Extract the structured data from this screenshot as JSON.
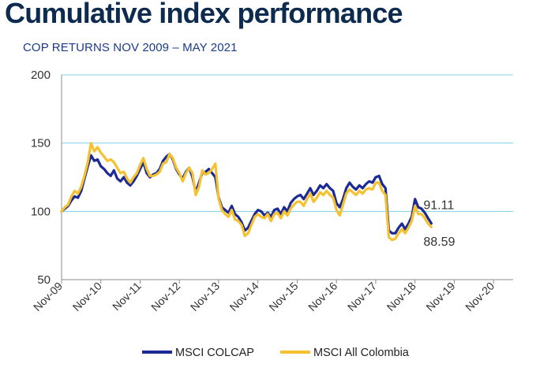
{
  "chart_data": {
    "type": "line",
    "title": "Cumulative index performance",
    "subtitle": "COP RETURNS NOV 2009  – MAY 2021",
    "xlabel": "",
    "ylabel": "",
    "ylim": [
      50,
      200
    ],
    "yticks": [
      50,
      100,
      150,
      200
    ],
    "xlim": [
      0,
      138
    ],
    "xticks": [
      {
        "label": "Nov-09",
        "x": 0
      },
      {
        "label": "Nov-10",
        "x": 12
      },
      {
        "label": "Nov-11",
        "x": 24
      },
      {
        "label": "Nov-12",
        "x": 36
      },
      {
        "label": "Nov-13",
        "x": 48
      },
      {
        "label": "Nov-14",
        "x": 60
      },
      {
        "label": "Nov-15",
        "x": 72
      },
      {
        "label": "Nov-16",
        "x": 84
      },
      {
        "label": "Nov-17",
        "x": 96
      },
      {
        "label": "Nov-18",
        "x": 108
      },
      {
        "label": "Nov-19",
        "x": 120
      },
      {
        "label": "Nov-20",
        "x": 132
      }
    ],
    "grid": "horizontal",
    "legend_position": "bottom",
    "series": [
      {
        "name": "MSCI COLCAP",
        "color": "#1b2a94",
        "end_label": "91.11",
        "points": [
          [
            0,
            100
          ],
          [
            1,
            102
          ],
          [
            2,
            104
          ],
          [
            3,
            108
          ],
          [
            4,
            111
          ],
          [
            5,
            110
          ],
          [
            6,
            115
          ],
          [
            7,
            124
          ],
          [
            8,
            133
          ],
          [
            9,
            141
          ],
          [
            10,
            137
          ],
          [
            11,
            138
          ],
          [
            12,
            133
          ],
          [
            13,
            131
          ],
          [
            14,
            128
          ],
          [
            15,
            126
          ],
          [
            16,
            130
          ],
          [
            17,
            124
          ],
          [
            18,
            122
          ],
          [
            19,
            125
          ],
          [
            20,
            121
          ],
          [
            21,
            119
          ],
          [
            22,
            122
          ],
          [
            23,
            126
          ],
          [
            24,
            131
          ],
          [
            25,
            136
          ],
          [
            26,
            128
          ],
          [
            27,
            125
          ],
          [
            28,
            127
          ],
          [
            29,
            128
          ],
          [
            30,
            131
          ],
          [
            31,
            137
          ],
          [
            32,
            140
          ],
          [
            33,
            142
          ],
          [
            34,
            138
          ],
          [
            35,
            131
          ],
          [
            36,
            127
          ],
          [
            37,
            124
          ],
          [
            38,
            129
          ],
          [
            39,
            132
          ],
          [
            40,
            125
          ],
          [
            41,
            114
          ],
          [
            42,
            121
          ],
          [
            43,
            128
          ],
          [
            44,
            129
          ],
          [
            45,
            131
          ],
          [
            46,
            128
          ],
          [
            47,
            125
          ],
          [
            48,
            110
          ],
          [
            49,
            103
          ],
          [
            50,
            101
          ],
          [
            51,
            99
          ],
          [
            52,
            104
          ],
          [
            53,
            98
          ],
          [
            54,
            96
          ],
          [
            55,
            92
          ],
          [
            56,
            86
          ],
          [
            57,
            88
          ],
          [
            58,
            93
          ],
          [
            59,
            98
          ],
          [
            60,
            101
          ],
          [
            61,
            100
          ],
          [
            62,
            97
          ],
          [
            63,
            99
          ],
          [
            64,
            96
          ],
          [
            65,
            101
          ],
          [
            66,
            102
          ],
          [
            67,
            98
          ],
          [
            68,
            103
          ],
          [
            69,
            100
          ],
          [
            70,
            106
          ],
          [
            71,
            109
          ],
          [
            72,
            111
          ],
          [
            73,
            112
          ],
          [
            74,
            109
          ],
          [
            75,
            113
          ],
          [
            76,
            117
          ],
          [
            77,
            112
          ],
          [
            78,
            115
          ],
          [
            79,
            119
          ],
          [
            80,
            117
          ],
          [
            81,
            120
          ],
          [
            82,
            117
          ],
          [
            83,
            115
          ],
          [
            84,
            106
          ],
          [
            85,
            103
          ],
          [
            86,
            109
          ],
          [
            87,
            117
          ],
          [
            88,
            121
          ],
          [
            89,
            118
          ],
          [
            90,
            116
          ],
          [
            91,
            119
          ],
          [
            92,
            117
          ],
          [
            93,
            120
          ],
          [
            94,
            122
          ],
          [
            95,
            121
          ],
          [
            96,
            125
          ],
          [
            97,
            126
          ],
          [
            98,
            120
          ],
          [
            99,
            117
          ],
          [
            100,
            86
          ],
          [
            101,
            84
          ],
          [
            102,
            84
          ],
          [
            103,
            88
          ],
          [
            104,
            91
          ],
          [
            105,
            87
          ],
          [
            106,
            91
          ],
          [
            107,
            96
          ],
          [
            108,
            109
          ],
          [
            109,
            103
          ],
          [
            110,
            102
          ],
          [
            111,
            99
          ],
          [
            112,
            95
          ],
          [
            113,
            91.11
          ]
        ]
      },
      {
        "name": "MSCI All Colombia",
        "color": "#f5c12e",
        "end_label": "88.59",
        "points": [
          [
            0,
            100
          ],
          [
            1,
            103
          ],
          [
            2,
            105
          ],
          [
            3,
            111
          ],
          [
            4,
            115
          ],
          [
            5,
            113
          ],
          [
            6,
            118
          ],
          [
            7,
            126
          ],
          [
            8,
            136
          ],
          [
            9,
            150
          ],
          [
            10,
            144
          ],
          [
            11,
            147
          ],
          [
            12,
            143
          ],
          [
            13,
            140
          ],
          [
            14,
            137
          ],
          [
            15,
            138
          ],
          [
            16,
            136
          ],
          [
            17,
            132
          ],
          [
            18,
            128
          ],
          [
            19,
            129
          ],
          [
            20,
            124
          ],
          [
            21,
            121
          ],
          [
            22,
            125
          ],
          [
            23,
            128
          ],
          [
            24,
            134
          ],
          [
            25,
            139
          ],
          [
            26,
            131
          ],
          [
            27,
            126
          ],
          [
            28,
            126
          ],
          [
            29,
            127
          ],
          [
            30,
            129
          ],
          [
            31,
            135
          ],
          [
            32,
            136
          ],
          [
            33,
            142
          ],
          [
            34,
            139
          ],
          [
            35,
            132
          ],
          [
            36,
            128
          ],
          [
            37,
            122
          ],
          [
            38,
            128
          ],
          [
            39,
            132
          ],
          [
            40,
            128
          ],
          [
            41,
            112
          ],
          [
            42,
            118
          ],
          [
            43,
            130
          ],
          [
            44,
            127
          ],
          [
            45,
            128
          ],
          [
            46,
            131
          ],
          [
            47,
            135
          ],
          [
            48,
            109
          ],
          [
            49,
            101
          ],
          [
            50,
            98
          ],
          [
            51,
            96
          ],
          [
            52,
            101
          ],
          [
            53,
            94
          ],
          [
            54,
            93
          ],
          [
            55,
            90
          ],
          [
            56,
            82
          ],
          [
            57,
            84
          ],
          [
            58,
            90
          ],
          [
            59,
            96
          ],
          [
            60,
            98
          ],
          [
            61,
            96
          ],
          [
            62,
            95
          ],
          [
            63,
            98
          ],
          [
            64,
            93
          ],
          [
            65,
            98
          ],
          [
            66,
            99
          ],
          [
            67,
            95
          ],
          [
            68,
            100
          ],
          [
            69,
            97
          ],
          [
            70,
            102
          ],
          [
            71,
            105
          ],
          [
            72,
            107
          ],
          [
            73,
            107
          ],
          [
            74,
            104
          ],
          [
            75,
            109
          ],
          [
            76,
            113
          ],
          [
            77,
            107
          ],
          [
            78,
            110
          ],
          [
            79,
            114
          ],
          [
            80,
            112
          ],
          [
            81,
            115
          ],
          [
            82,
            112
          ],
          [
            83,
            110
          ],
          [
            84,
            101
          ],
          [
            85,
            97
          ],
          [
            86,
            105
          ],
          [
            87,
            113
          ],
          [
            88,
            116
          ],
          [
            89,
            114
          ],
          [
            90,
            112
          ],
          [
            91,
            115
          ],
          [
            92,
            113
          ],
          [
            93,
            116
          ],
          [
            94,
            117
          ],
          [
            95,
            116
          ],
          [
            96,
            121
          ],
          [
            97,
            121
          ],
          [
            98,
            115
          ],
          [
            99,
            112
          ],
          [
            100,
            81
          ],
          [
            101,
            79
          ],
          [
            102,
            80
          ],
          [
            103,
            84
          ],
          [
            104,
            87
          ],
          [
            105,
            84
          ],
          [
            106,
            88
          ],
          [
            107,
            93
          ],
          [
            108,
            104
          ],
          [
            109,
            98
          ],
          [
            110,
            98
          ],
          [
            111,
            95
          ],
          [
            112,
            91
          ],
          [
            113,
            88.59
          ]
        ]
      }
    ]
  }
}
